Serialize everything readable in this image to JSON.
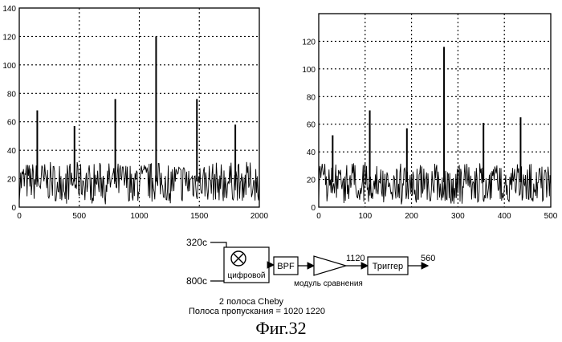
{
  "chart_data": [
    {
      "type": "line",
      "title": "",
      "xlabel": "",
      "ylabel": "",
      "xlim": [
        0,
        2000
      ],
      "ylim": [
        0,
        140
      ],
      "xticks": [
        0,
        500,
        1000,
        1500,
        2000
      ],
      "yticks": [
        0,
        20,
        40,
        60,
        80,
        100,
        120,
        140
      ],
      "grid": "dotted",
      "noise_floor": {
        "range": [
          5,
          30
        ],
        "mean": 18
      },
      "peaks": [
        {
          "x": 150,
          "y": 68
        },
        {
          "x": 460,
          "y": 57
        },
        {
          "x": 800,
          "y": 76
        },
        {
          "x": 1140,
          "y": 120
        },
        {
          "x": 1480,
          "y": 76
        },
        {
          "x": 1800,
          "y": 58
        }
      ]
    },
    {
      "type": "line",
      "title": "",
      "xlabel": "",
      "ylabel": "",
      "xlim": [
        0,
        500
      ],
      "ylim": [
        0,
        140
      ],
      "xticks": [
        0,
        100,
        200,
        300,
        400,
        500
      ],
      "yticks": [
        0,
        20,
        40,
        60,
        80,
        100,
        120
      ],
      "grid": "dotted",
      "noise_floor": {
        "range": [
          5,
          30
        ],
        "mean": 18
      },
      "peaks": [
        {
          "x": 30,
          "y": 52
        },
        {
          "x": 110,
          "y": 70
        },
        {
          "x": 190,
          "y": 57
        },
        {
          "x": 270,
          "y": 116
        },
        {
          "x": 355,
          "y": 61
        },
        {
          "x": 435,
          "y": 65
        }
      ]
    }
  ],
  "diagram": {
    "input_top": "320c",
    "input_bottom": "800c",
    "mixer_label": "цифровой",
    "bpf_label": "BPF",
    "comparator_value": "1120",
    "comparator_label": "модуль сравнения",
    "trigger_label": "Триггер",
    "output_value": "560",
    "filter_note_line1": "2 полоса Cheby",
    "filter_note_line2": "Полоса пропускания = 1020 1220"
  },
  "caption": "Фиг.32"
}
